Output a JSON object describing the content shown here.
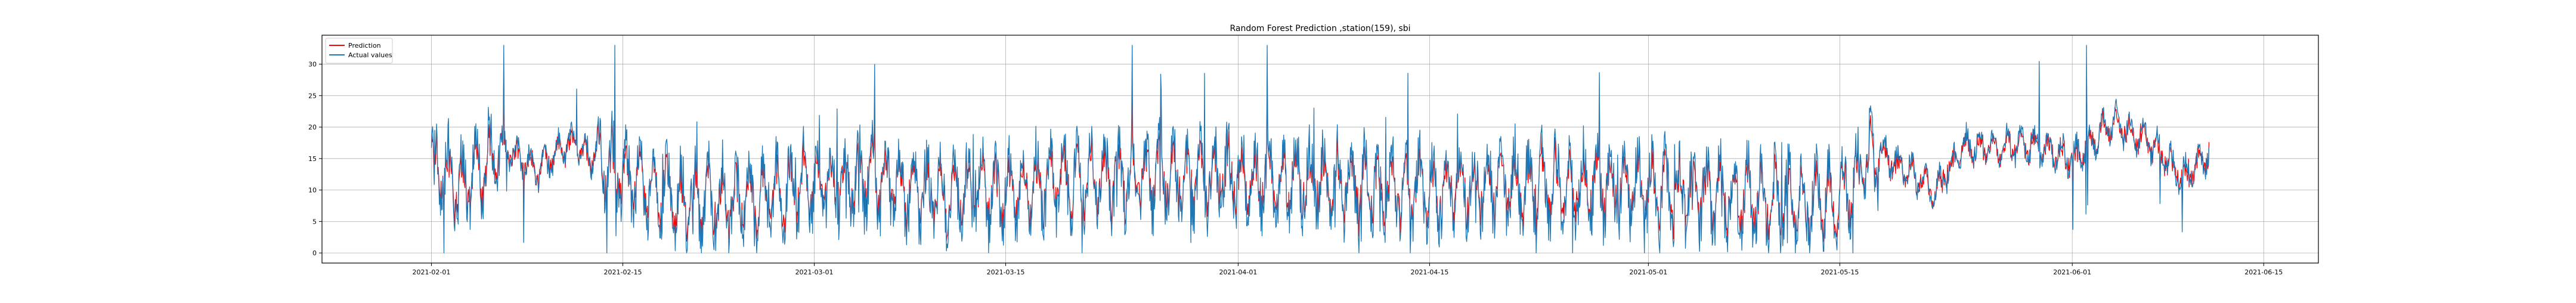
{
  "chart_data": {
    "type": "line",
    "title": "Random Forest Prediction ,station(159), sbi",
    "xlabel": "",
    "ylabel": "",
    "x_range": [
      "2021-01-24",
      "2021-06-19"
    ],
    "ylim": [
      -1.6,
      34.6
    ],
    "x_ticks": [
      "2021-02-01",
      "2021-02-15",
      "2021-03-01",
      "2021-03-15",
      "2021-04-01",
      "2021-04-15",
      "2021-05-01",
      "2021-05-15",
      "2021-06-01",
      "2021-06-15"
    ],
    "y_ticks": [
      0,
      5,
      10,
      15,
      20,
      25,
      30
    ],
    "grid": true,
    "legend_position": "top-left",
    "x_start": "2021-02-01",
    "x_end": "2021-06-11",
    "series": [
      {
        "name": "Prediction",
        "color": "#ff0000",
        "keypoints": [
          [
            "2021-02-01",
            14
          ],
          [
            "2021-02-03",
            10
          ],
          [
            "2021-02-06",
            16
          ],
          [
            "2021-02-09",
            13
          ],
          [
            "2021-02-11",
            17
          ],
          [
            "2021-02-13",
            15
          ],
          [
            "2021-02-15",
            12
          ],
          [
            "2021-02-20",
            8
          ],
          [
            "2021-02-25",
            9
          ],
          [
            "2021-03-01",
            11
          ],
          [
            "2021-03-05",
            12
          ],
          [
            "2021-03-10",
            9
          ],
          [
            "2021-03-15",
            10
          ],
          [
            "2021-03-22",
            12
          ],
          [
            "2021-04-01",
            12
          ],
          [
            "2021-04-10",
            11
          ],
          [
            "2021-04-15",
            10
          ],
          [
            "2021-04-22",
            11
          ],
          [
            "2021-05-01",
            10
          ],
          [
            "2021-05-08",
            9
          ],
          [
            "2021-05-12",
            8
          ],
          [
            "2021-05-15",
            9
          ],
          [
            "2021-05-18",
            15
          ],
          [
            "2021-05-22",
            10
          ],
          [
            "2021-05-24",
            16
          ],
          [
            "2021-05-29",
            17
          ],
          [
            "2021-06-01",
            15
          ],
          [
            "2021-06-04",
            20
          ],
          [
            "2021-06-07",
            17
          ],
          [
            "2021-06-09",
            12
          ],
          [
            "2021-06-11",
            16
          ]
        ]
      },
      {
        "name": "Actual values",
        "color": "#1f77b4",
        "keypoints": [
          [
            "2021-02-01",
            15
          ],
          [
            "2021-02-03",
            10
          ],
          [
            "2021-02-06",
            17
          ],
          [
            "2021-02-09",
            13
          ],
          [
            "2021-02-11",
            18
          ],
          [
            "2021-02-13",
            15
          ],
          [
            "2021-02-15",
            12
          ],
          [
            "2021-02-20",
            8
          ],
          [
            "2021-02-25",
            9
          ],
          [
            "2021-03-01",
            11
          ],
          [
            "2021-03-05",
            12
          ],
          [
            "2021-03-10",
            9
          ],
          [
            "2021-03-15",
            10
          ],
          [
            "2021-03-22",
            12
          ],
          [
            "2021-04-01",
            12
          ],
          [
            "2021-04-10",
            11
          ],
          [
            "2021-04-15",
            10
          ],
          [
            "2021-04-22",
            11
          ],
          [
            "2021-05-01",
            10
          ],
          [
            "2021-05-08",
            9
          ],
          [
            "2021-05-12",
            8
          ],
          [
            "2021-05-15",
            9
          ],
          [
            "2021-05-18",
            16
          ],
          [
            "2021-05-22",
            10
          ],
          [
            "2021-05-24",
            17
          ],
          [
            "2021-05-29",
            17
          ],
          [
            "2021-06-01",
            15
          ],
          [
            "2021-06-04",
            21
          ],
          [
            "2021-06-07",
            17
          ],
          [
            "2021-06-09",
            12
          ],
          [
            "2021-06-11",
            16
          ]
        ]
      }
    ]
  }
}
